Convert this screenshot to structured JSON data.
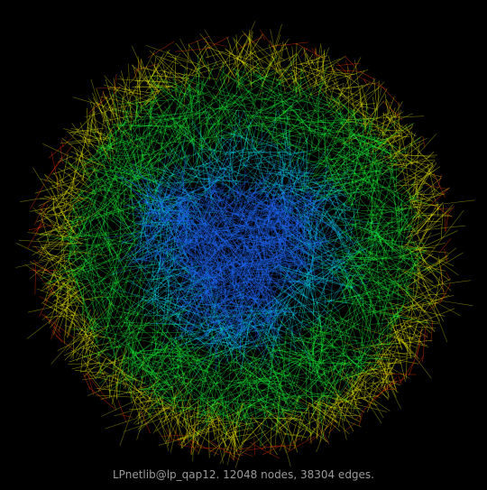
{
  "caption": "LPnetlib@lp_qap12. 12048 nodes, 38304 edges.",
  "graph": {
    "nodes": 12048,
    "edges": 38304,
    "color_scale": [
      "#1f6cff",
      "#00e6ff",
      "#19ff3a",
      "#e6e600",
      "#ff3a00"
    ],
    "background": "#000000"
  }
}
